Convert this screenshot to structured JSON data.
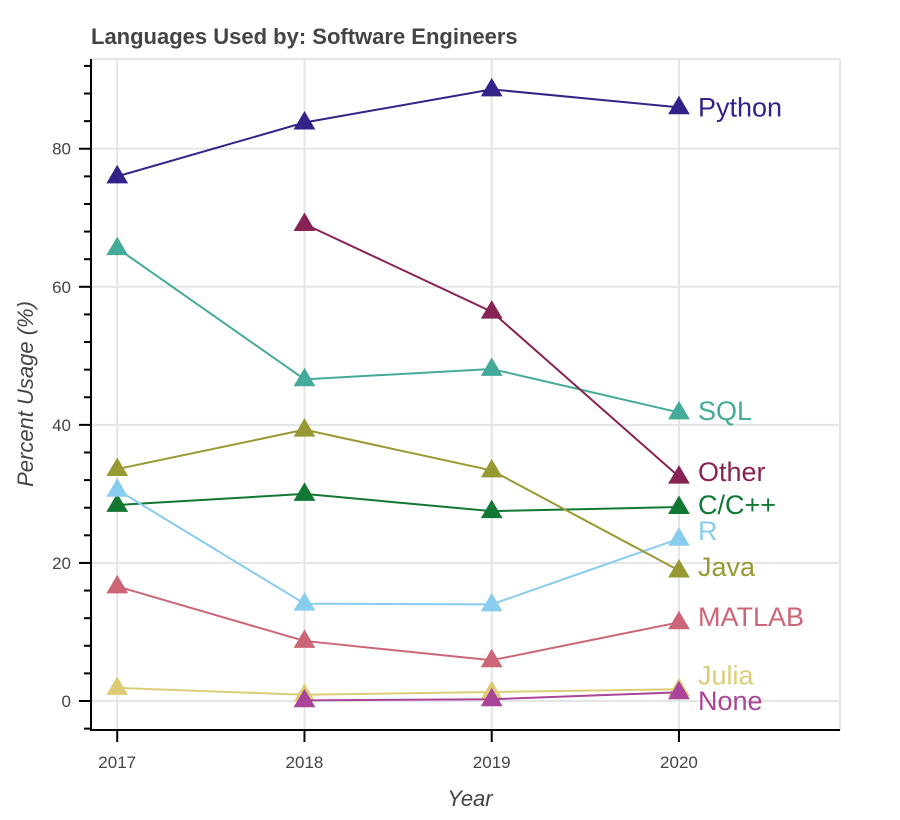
{
  "chart_data": {
    "type": "line",
    "title": "Languages Used by: Software Engineers",
    "xlabel": "Year",
    "ylabel": "Percent Usage (%)",
    "x": [
      2017,
      2018,
      2019,
      2020
    ],
    "xlim": [
      2016.86,
      2020.86
    ],
    "ylim": [
      -4.2,
      93
    ],
    "xticks": [
      2017,
      2018,
      2019,
      2020
    ],
    "yticks": [
      0,
      20,
      40,
      60,
      80
    ],
    "y_minor_tick_step": 4,
    "grid": true,
    "legend": "inline-labels-right",
    "marker": "triangle",
    "series": [
      {
        "name": "Python",
        "color": "#332288",
        "values": [
          76.0,
          83.8,
          88.6,
          86.0
        ],
        "label_value": 86.0
      },
      {
        "name": "SQL",
        "color": "#44AA99",
        "values": [
          65.6,
          46.6,
          48.1,
          41.8
        ],
        "label_value": 42.0
      },
      {
        "name": "Other",
        "color": "#882255",
        "values": [
          null,
          69.1,
          56.4,
          32.5
        ],
        "label_value": 33.2
      },
      {
        "name": "C/C++",
        "color": "#117733",
        "values": [
          28.4,
          30.0,
          27.5,
          28.1
        ],
        "label_value": 28.4
      },
      {
        "name": "R",
        "color": "#88CCEE",
        "values": [
          30.6,
          14.1,
          14.0,
          23.5
        ],
        "label_value": 24.6
      },
      {
        "name": "Java",
        "color": "#999933",
        "values": [
          33.6,
          39.3,
          33.4,
          18.9
        ],
        "label_value": 19.4
      },
      {
        "name": "MATLAB",
        "color": "#CC6677",
        "values": [
          16.6,
          8.7,
          5.9,
          11.4
        ],
        "label_value": 12.2
      },
      {
        "name": "Julia",
        "color": "#DDCC77",
        "values": [
          1.9,
          0.9,
          1.3,
          1.7
        ],
        "label_value": 3.7
      },
      {
        "name": "None",
        "color": "#AA4499",
        "values": [
          null,
          0.1,
          0.25,
          1.26
        ],
        "label_value": 0.0
      }
    ]
  }
}
